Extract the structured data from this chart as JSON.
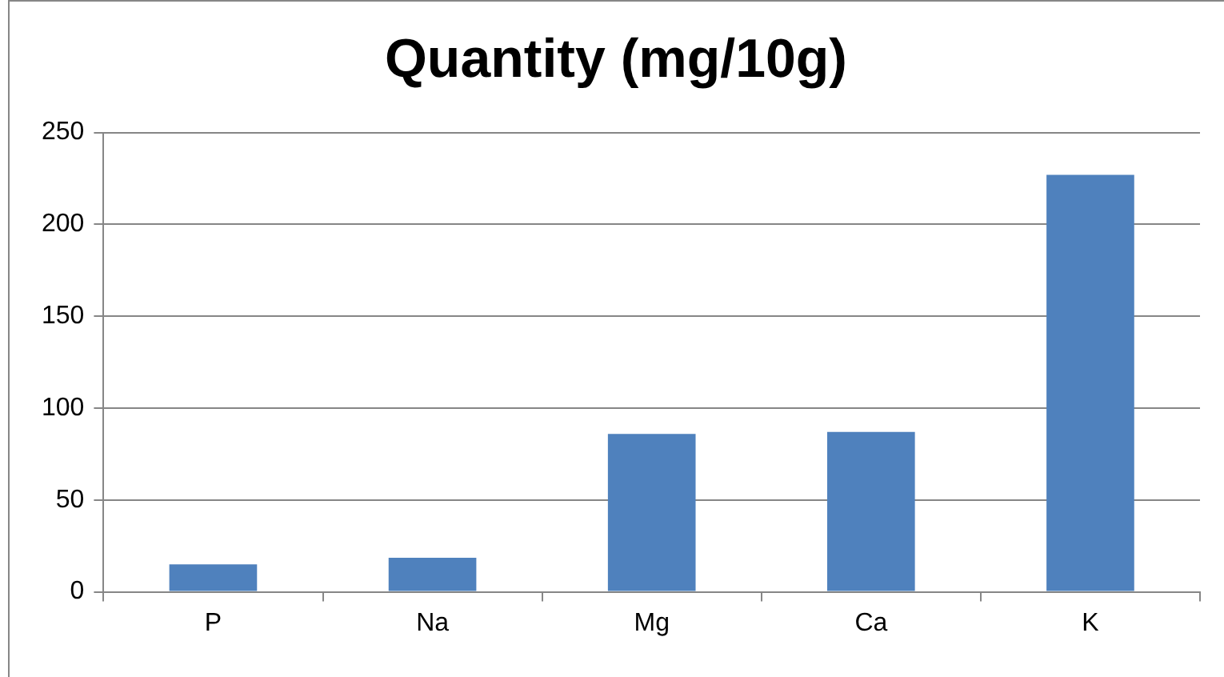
{
  "chart_data": {
    "type": "bar",
    "title": "Quantity (mg/10g)",
    "categories": [
      "P",
      "Na",
      "Mg",
      "Ca",
      "K"
    ],
    "values": [
      15,
      18.5,
      86,
      87,
      227
    ],
    "color": "#4f81bd",
    "ylim": [
      0,
      250
    ],
    "yticks": [
      0,
      50,
      100,
      150,
      200,
      250
    ],
    "grid": "y",
    "legend": false
  }
}
